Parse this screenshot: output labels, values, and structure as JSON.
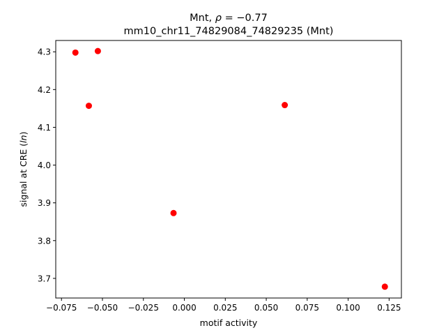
{
  "chart_data": {
    "type": "scatter",
    "title_line1": "Mnt, ",
    "title_rho": "ρ",
    "title_rho_value": " = −0.77",
    "title_line2": "mm10_chr11_74829084_74829235 (Mnt)",
    "xlabel": "motif activity",
    "ylabel_prefix": "signal at CRE (",
    "ylabel_italic": "ln",
    "ylabel_suffix": ")",
    "xlim": [
      -0.0785,
      0.1325
    ],
    "ylim": [
      3.648,
      4.33
    ],
    "xticks": [
      -0.075,
      -0.05,
      -0.025,
      0.0,
      0.025,
      0.05,
      0.075,
      0.1,
      0.125
    ],
    "xtick_labels": [
      "−0.075",
      "−0.050",
      "−0.025",
      "0.000",
      "0.025",
      "0.050",
      "0.075",
      "0.100",
      "0.125"
    ],
    "yticks": [
      3.7,
      3.8,
      3.9,
      4.0,
      4.1,
      4.2,
      4.3
    ],
    "ytick_labels": [
      "3.7",
      "3.8",
      "3.9",
      "4.0",
      "4.1",
      "4.2",
      "4.3"
    ],
    "marker_color": "#ff0000",
    "grid": false,
    "points": [
      {
        "x": -0.0665,
        "y": 4.298
      },
      {
        "x": -0.0528,
        "y": 4.302
      },
      {
        "x": -0.0583,
        "y": 4.157
      },
      {
        "x": -0.0066,
        "y": 3.873
      },
      {
        "x": 0.0613,
        "y": 4.159
      },
      {
        "x": 0.1224,
        "y": 3.678
      }
    ]
  }
}
